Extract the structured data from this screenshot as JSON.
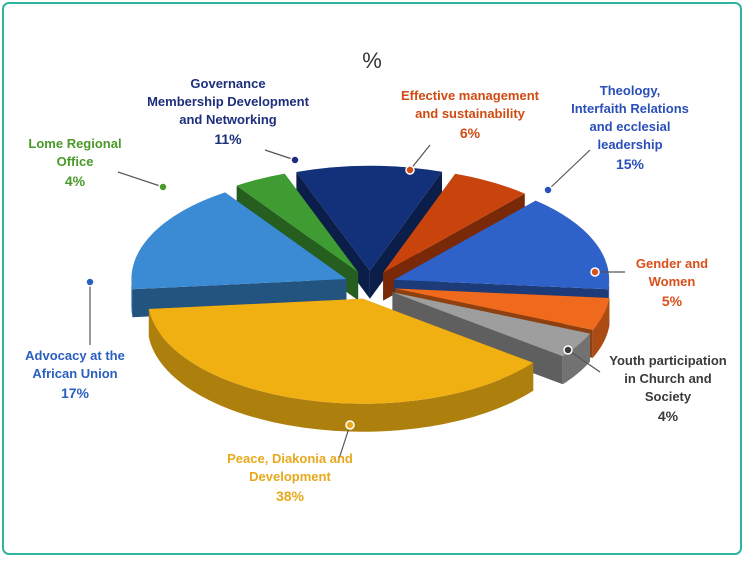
{
  "chart_data": {
    "type": "pie3d",
    "title": "%",
    "categories": [
      "Governance\nMembership Development\nand Networking",
      "Effective management\nand sustainability",
      "Theology,\nInterfaith Relations\nand ecclesial\nleadership",
      "Gender and\nWomen",
      "Youth participation\nin Church and\nSociety",
      "Peace, Diakonia and\nDevelopment",
      "Advocacy at the\nAfrican Union",
      "Lome Regional\nOffice"
    ],
    "values": [
      11,
      6,
      15,
      5,
      4,
      38,
      17,
      4
    ],
    "value_labels": [
      "11%",
      "6%",
      "15%",
      "5%",
      "4%",
      "38%",
      "17%",
      "4%"
    ],
    "colors": [
      "#13307a",
      "#c9440c",
      "#2f62c8",
      "#ef6a1c",
      "#9e9e9e",
      "#f0b012",
      "#3b8bd4",
      "#3e9c33"
    ],
    "label_colors": [
      "#1d2f7c",
      "#d04a12",
      "#2a4fb8",
      "#d8501a",
      "#3a3a3a",
      "#e8a81a",
      "#2a5fbf",
      "#4a9a2a"
    ]
  }
}
